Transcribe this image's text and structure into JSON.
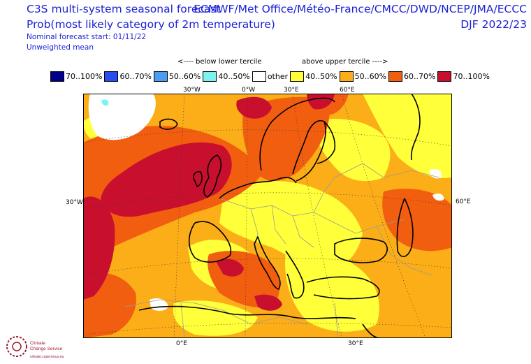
{
  "header": {
    "title_line1": "C3S multi-system seasonal forecast",
    "title_line2": "Prob(most likely category of 2m temperature)",
    "nominal_start": "Nominal forecast start: 01/11/22",
    "weighting": "Unweighted mean",
    "sources": "ECMWF/Met Office/Météo-France/CMCC/DWD/NCEP/JMA/ECCC",
    "season": "DJF 2022/23"
  },
  "legend": {
    "below_label": "<---- below lower tercile",
    "above_label": "above upper tercile ---->",
    "items": [
      {
        "label": "70..100%",
        "color": "#00008c"
      },
      {
        "label": "60..70%",
        "color": "#2a4df2"
      },
      {
        "label": "50..60%",
        "color": "#4a9df0"
      },
      {
        "label": "40..50%",
        "color": "#7ef2ee"
      },
      {
        "label": "other",
        "color": "#ffffff"
      },
      {
        "label": "40..50%",
        "color": "#ffff3a"
      },
      {
        "label": "50..60%",
        "color": "#fbae17"
      },
      {
        "label": "60..70%",
        "color": "#f25e10"
      },
      {
        "label": "70..100%",
        "color": "#c8102e"
      }
    ]
  },
  "axes": {
    "top": [
      "30°W",
      "0°W",
      "30°E",
      "60°E"
    ],
    "left": "30°W",
    "right": "60°E",
    "bottom": [
      "0°E",
      "30°E"
    ]
  },
  "logo": {
    "line1": "Climate",
    "line2": "Change Service",
    "line3": "climate.copernicus.eu"
  }
}
